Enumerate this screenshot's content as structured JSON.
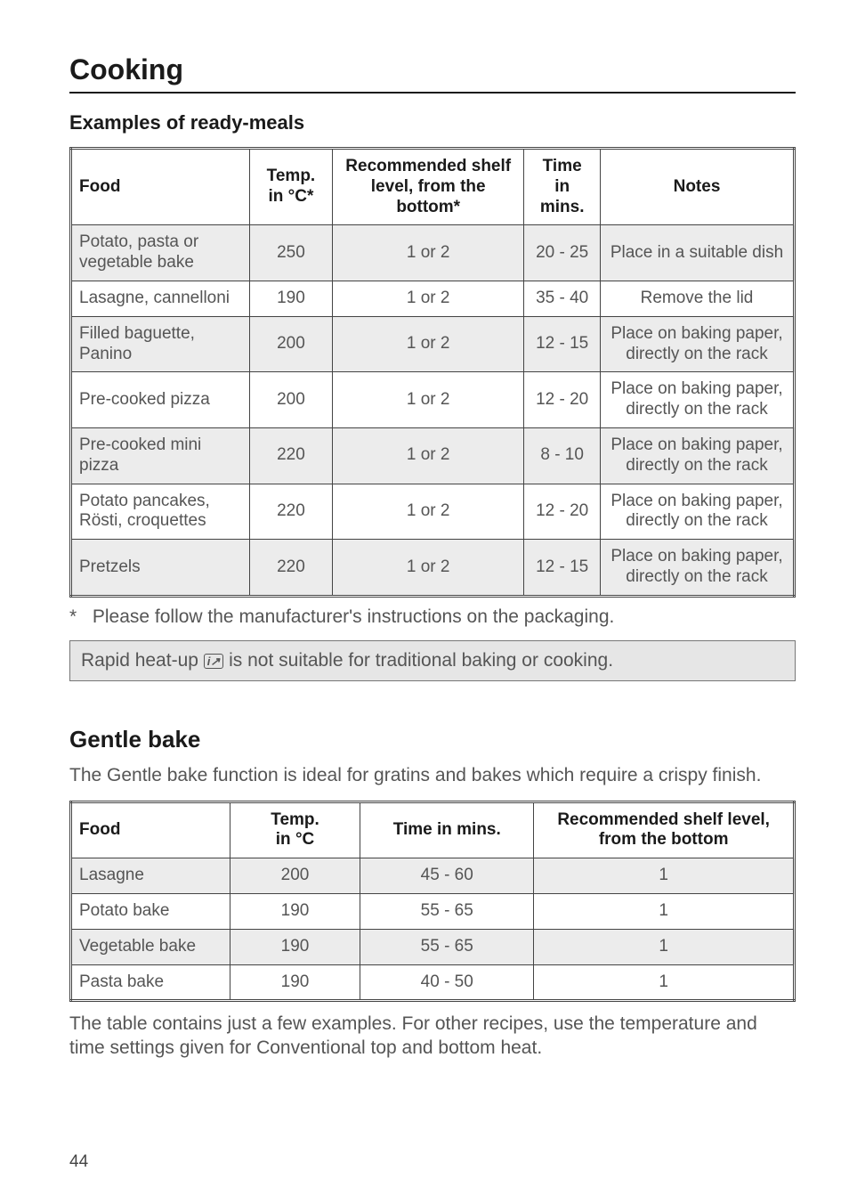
{
  "chapter_title": "Cooking",
  "section1_title": "Examples of ready-meals",
  "table1": {
    "headers": {
      "food": "Food",
      "temp": "Temp.\nin °C*",
      "shelf": "Recommended shelf level, from the bottom*",
      "time": "Time\nin mins.",
      "notes": "Notes"
    },
    "rows": [
      {
        "food": "Potato, pasta or vegetable bake",
        "temp": "250",
        "shelf": "1 or 2",
        "time": "20 - 25",
        "notes": "Place in a suitable dish",
        "shade": true
      },
      {
        "food": "Lasagne, cannelloni",
        "temp": "190",
        "shelf": "1 or 2",
        "time": "35 - 40",
        "notes": "Remove the lid",
        "shade": false
      },
      {
        "food": "Filled baguette, Panino",
        "temp": "200",
        "shelf": "1 or 2",
        "time": "12 - 15",
        "notes": "Place on baking paper, directly on the rack",
        "shade": true
      },
      {
        "food": "Pre-cooked pizza",
        "temp": "200",
        "shelf": "1 or 2",
        "time": "12 - 20",
        "notes": "Place on baking paper, directly on the rack",
        "shade": false
      },
      {
        "food": "Pre-cooked mini pizza",
        "temp": "220",
        "shelf": "1 or 2",
        "time": "8 - 10",
        "notes": "Place on baking paper, directly on the rack",
        "shade": true
      },
      {
        "food": "Potato pancakes, Rösti, croquettes",
        "temp": "220",
        "shelf": "1 or 2",
        "time": "12 - 20",
        "notes": "Place on baking paper, directly on the rack",
        "shade": false
      },
      {
        "food": "Pretzels",
        "temp": "220",
        "shelf": "1 or 2",
        "time": "12 - 15",
        "notes": "Place on baking paper, directly on the rack",
        "shade": true
      }
    ]
  },
  "footnote": {
    "star": "*",
    "text": "Please follow the manufacturer's instructions on the packaging."
  },
  "callout": {
    "pre": "Rapid heat-up ",
    "icon": "i↗",
    "post": " is not suitable for traditional baking or cooking."
  },
  "section2_title": "Gentle bake",
  "section2_intro": "The Gentle bake function is ideal for gratins and bakes which require a crispy finish.",
  "table2": {
    "headers": {
      "food": "Food",
      "temp": "Temp.\nin °C",
      "time": "Time in mins.",
      "shelf": "Recommended shelf level, from the bottom"
    },
    "rows": [
      {
        "food": "Lasagne",
        "temp": "200",
        "time": "45 - 60",
        "shelf": "1",
        "shade": true
      },
      {
        "food": "Potato bake",
        "temp": "190",
        "time": "55 - 65",
        "shelf": "1",
        "shade": false
      },
      {
        "food": "Vegetable bake",
        "temp": "190",
        "time": "55 - 65",
        "shelf": "1",
        "shade": true
      },
      {
        "food": "Pasta bake",
        "temp": "190",
        "time": "40 - 50",
        "shelf": "1",
        "shade": false
      }
    ]
  },
  "closing_para": "The table contains just a few examples. For other recipes, use the temperature and time settings given for Conventional top and bottom heat.",
  "page_number": "44",
  "col_widths": {
    "t1": [
      "27%",
      "12%",
      "28%",
      "11%",
      "22%"
    ],
    "t2": [
      "22%",
      "18%",
      "24%",
      "36%"
    ]
  }
}
